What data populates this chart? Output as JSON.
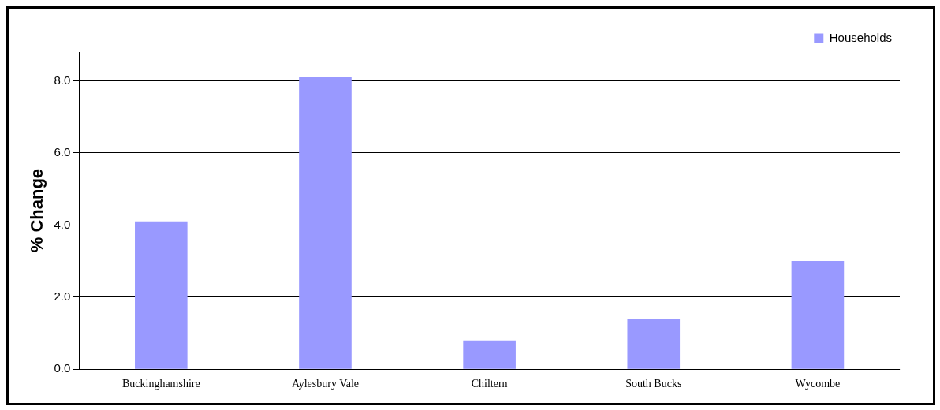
{
  "chart_data": {
    "type": "bar",
    "ylabel": "% Change",
    "categories": [
      "Buckinghamshire",
      "Aylesbury Vale",
      "Chiltern",
      "South Bucks",
      "Wycombe"
    ],
    "series": [
      {
        "name": "Households",
        "color": "#9999ff",
        "values": [
          4.1,
          8.1,
          0.8,
          1.4,
          3.0
        ]
      }
    ],
    "ylim": [
      0,
      8.8
    ],
    "yticks": [
      {
        "value": 0,
        "label": "0.0"
      },
      {
        "value": 2,
        "label": "2.0"
      },
      {
        "value": 4,
        "label": "4.0"
      },
      {
        "value": 6,
        "label": "6.0"
      },
      {
        "value": 8,
        "label": "8.0"
      }
    ],
    "grid": "y",
    "legend": "top right"
  }
}
